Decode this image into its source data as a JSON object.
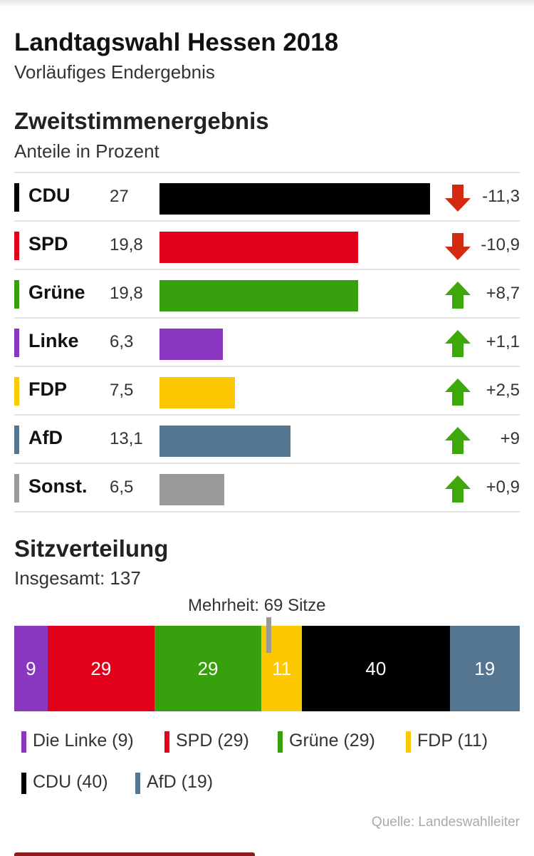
{
  "header": {
    "title": "Landtagswahl Hessen 2018",
    "subtitle": "Vorläufiges Endergebnis"
  },
  "colors": {
    "CDU": "#000000",
    "SPD": "#e3001b",
    "Grüne": "#36a10c",
    "Linke": "#8a37bf",
    "FDP": "#fcc800",
    "AfD": "#557691",
    "Sonst.": "#9a9a9a",
    "up": "#3ea80a",
    "down": "#d32a10"
  },
  "chart_data": [
    {
      "type": "bar",
      "title": "Zweitstimmenergebnis",
      "subtitle": "Anteile in Prozent",
      "categories": [
        "CDU",
        "SPD",
        "Grüne",
        "Linke",
        "FDP",
        "AfD",
        "Sonst."
      ],
      "values": [
        27,
        19.8,
        19.8,
        6.3,
        7.5,
        13.1,
        6.5
      ],
      "value_labels": [
        "27",
        "19,8",
        "19,8",
        "6,3",
        "7,5",
        "13,1",
        "6,5"
      ],
      "changes": [
        -11.3,
        -10.9,
        8.7,
        1.1,
        2.5,
        9,
        0.9
      ],
      "change_labels": [
        "-11,3",
        "-10,9",
        "+8,7",
        "+1,1",
        "+2,5",
        "+9",
        "+0,9"
      ],
      "xlim": [
        0,
        27
      ],
      "grid": false
    },
    {
      "type": "bar",
      "stacked": true,
      "title": "Sitzverteilung",
      "subtitle": "Insgesamt: 137",
      "annotation": "Mehrheit: 69 Sitze",
      "majority": 69,
      "total": 137,
      "categories": [
        "Die Linke",
        "SPD",
        "Grüne",
        "FDP",
        "CDU",
        "AfD"
      ],
      "values": [
        9,
        29,
        29,
        11,
        40,
        19
      ],
      "value_labels": [
        "9",
        "29",
        "29",
        "11",
        "40",
        "19"
      ],
      "legend": [
        "Die Linke (9)",
        "SPD (29)",
        "Grüne (29)",
        "FDP (11)",
        "CDU (40)",
        "AfD (19)"
      ],
      "legend_placement": "bottom"
    }
  ],
  "footer": {
    "source": "Quelle: Landeswahlleiter"
  }
}
